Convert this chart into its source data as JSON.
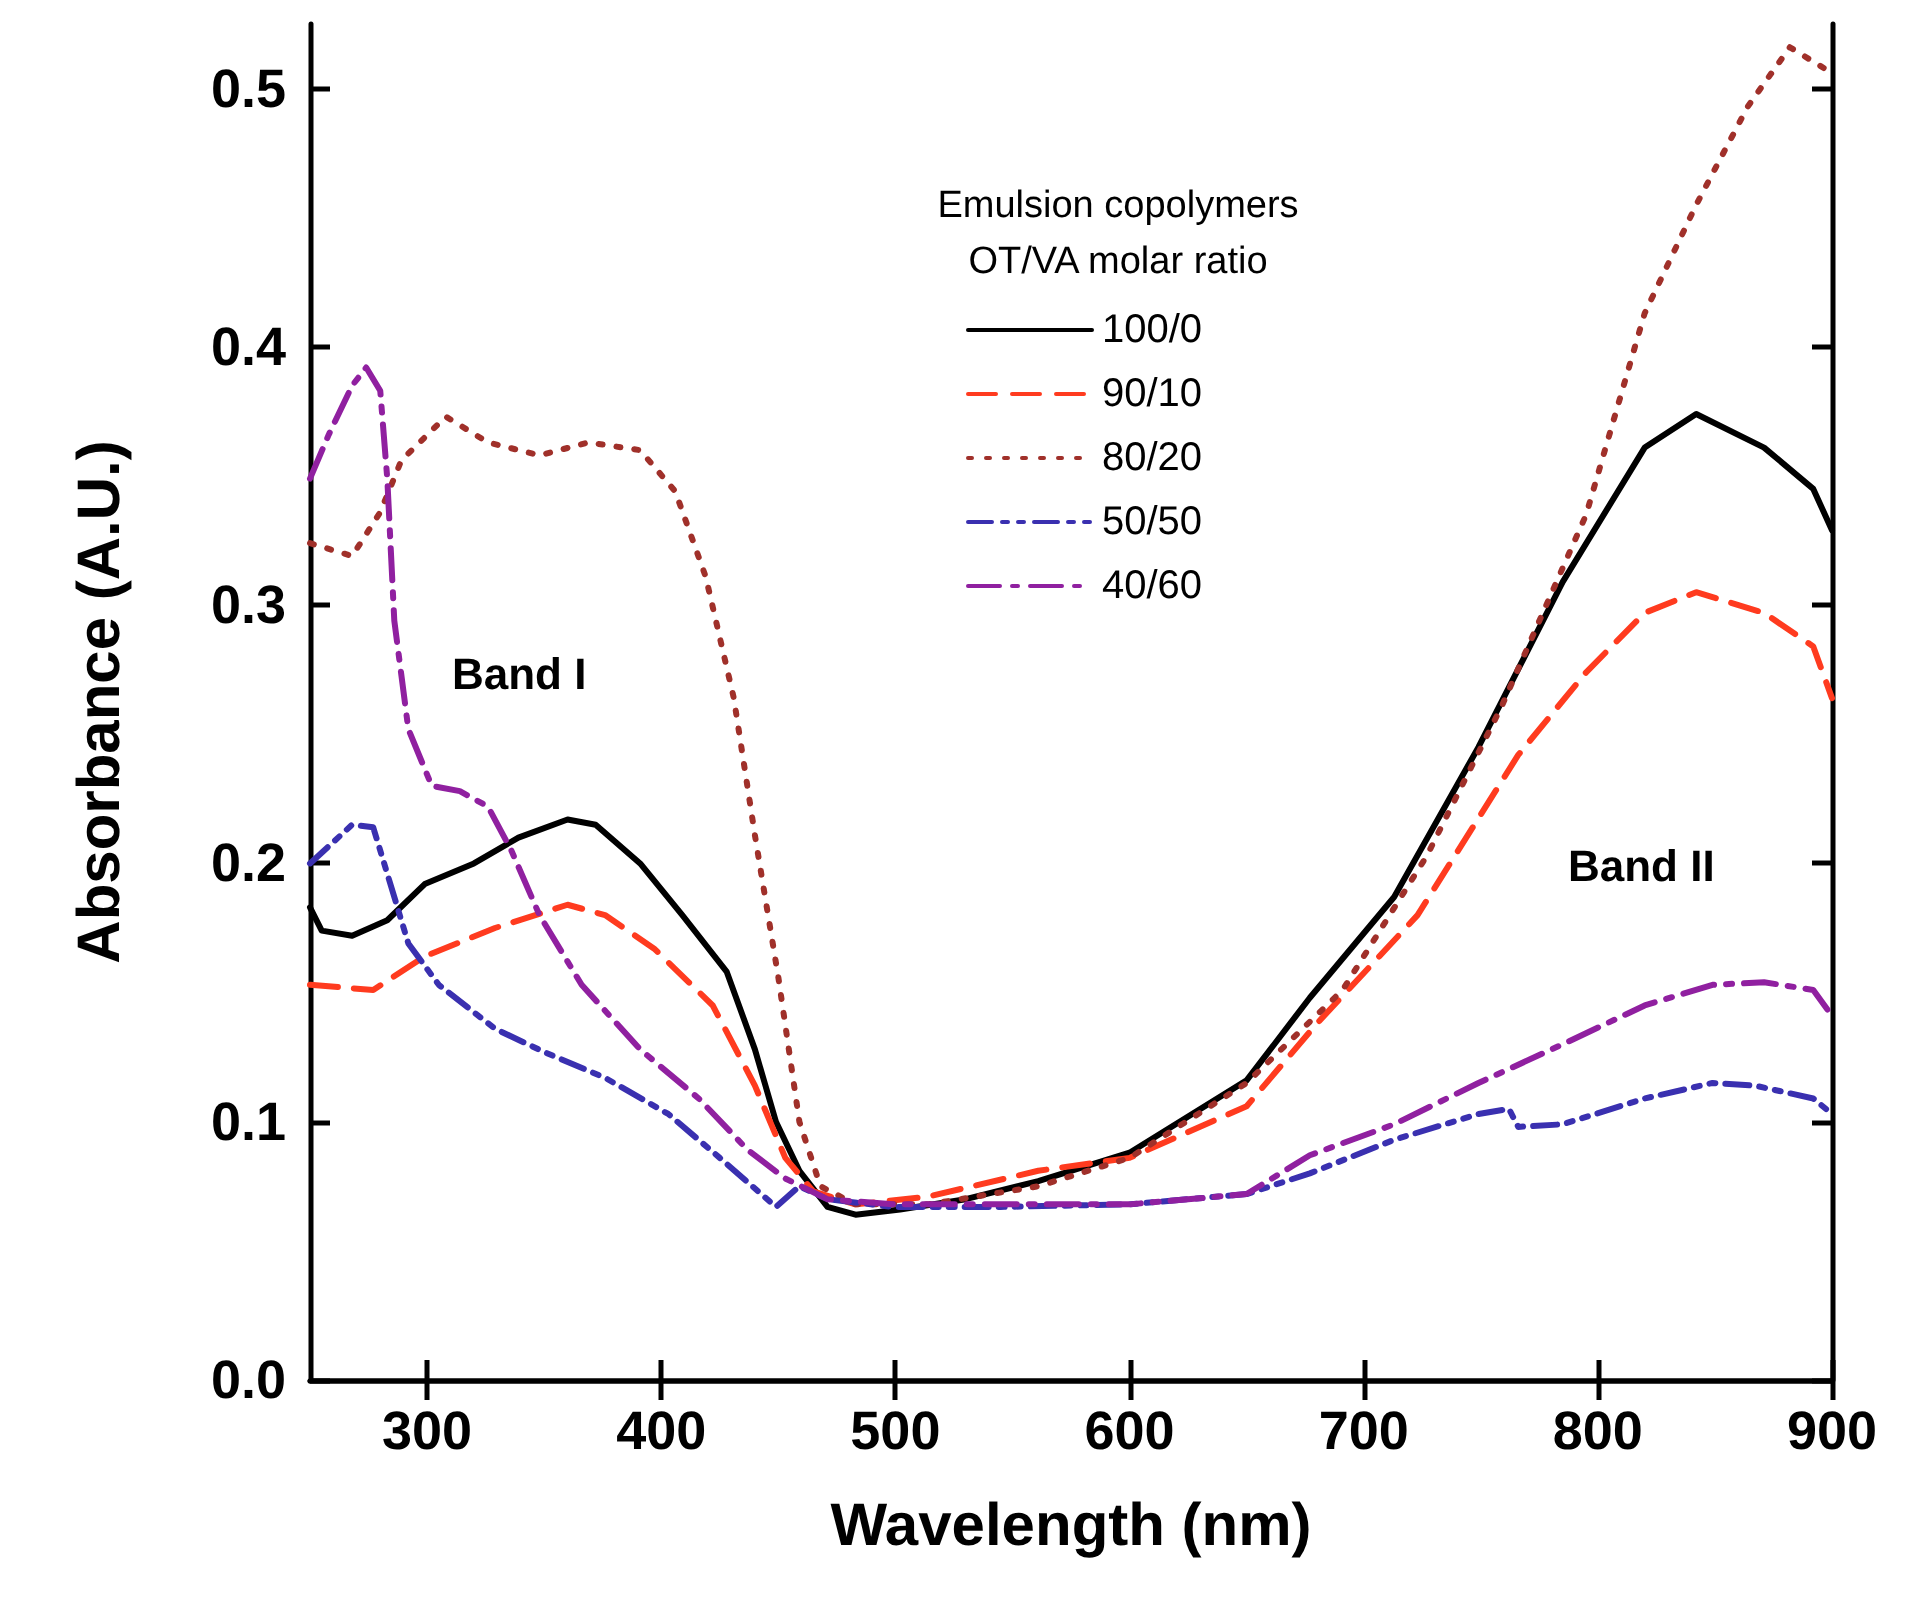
{
  "chart_data": {
    "type": "line",
    "xlabel": "Wavelength (nm)",
    "ylabel": "Absorbance (A.U.)",
    "legend_title": "Emulsion copolymers\nOT/VA molar ratio",
    "legend": "top",
    "grid": false,
    "marker": "none",
    "xlim": [
      250,
      900
    ],
    "xticks": [
      300,
      400,
      500,
      600,
      700,
      800,
      900
    ],
    "ylim": [
      0,
      0.525
    ],
    "yticks": [
      {
        "value": 0,
        "label": "0.0"
      },
      0.1,
      0.2,
      0.3,
      0.4,
      0.5
    ],
    "annotations": [
      "Band I",
      "Band II"
    ],
    "series": [
      {
        "name": "100/0",
        "color": "#000000",
        "line_style": "solid",
        "x": [
          250,
          255,
          268,
          283,
          299,
          320,
          339,
          360,
          372,
          391,
          409,
          428,
          440,
          449,
          459,
          471,
          483,
          502,
          530,
          561,
          600,
          650,
          677,
          713,
          749,
          785,
          820,
          842,
          871,
          892,
          900
        ],
        "values": [
          0.183,
          0.174,
          0.172,
          0.178,
          0.192,
          0.2,
          0.21,
          0.217,
          0.215,
          0.2,
          0.18,
          0.158,
          0.128,
          0.1,
          0.081,
          0.067,
          0.064,
          0.066,
          0.07,
          0.077,
          0.088,
          0.116,
          0.148,
          0.187,
          0.245,
          0.309,
          0.361,
          0.374,
          0.361,
          0.345,
          0.329
        ]
      },
      {
        "name": "90/10",
        "color": "#ff3b1f",
        "line_style": "dashed",
        "x": [
          250,
          277,
          299,
          329,
          360,
          376,
          397,
          422,
          440,
          453,
          465,
          483,
          514,
          561,
          600,
          650,
          680,
          723,
          766,
          795,
          820,
          842,
          871,
          892,
          900
        ],
        "values": [
          0.153,
          0.151,
          0.164,
          0.175,
          0.184,
          0.18,
          0.167,
          0.145,
          0.114,
          0.086,
          0.073,
          0.068,
          0.071,
          0.081,
          0.086,
          0.106,
          0.138,
          0.18,
          0.242,
          0.274,
          0.297,
          0.305,
          0.297,
          0.284,
          0.264
        ]
      },
      {
        "name": "80/20",
        "color": "#a0302a",
        "line_style": "dotted",
        "x": [
          250,
          268,
          280,
          289,
          308,
          326,
          348,
          369,
          391,
          406,
          419,
          431,
          440,
          450,
          459,
          468,
          483,
          514,
          561,
          600,
          650,
          691,
          727,
          759,
          795,
          820,
          842,
          864,
          882,
          900
        ],
        "values": [
          0.324,
          0.319,
          0.336,
          0.356,
          0.373,
          0.363,
          0.358,
          0.363,
          0.36,
          0.344,
          0.311,
          0.264,
          0.211,
          0.156,
          0.1,
          0.075,
          0.068,
          0.068,
          0.075,
          0.086,
          0.115,
          0.151,
          0.203,
          0.261,
          0.335,
          0.413,
          0.455,
          0.493,
          0.516,
          0.506
        ]
      },
      {
        "name": "50/50",
        "color": "#3a30b0",
        "line_style": "dashdotdot",
        "x": [
          250,
          268,
          277,
          292,
          305,
          329,
          350,
          376,
          403,
          425,
          449,
          459,
          471,
          499,
          545,
          600,
          650,
          677,
          713,
          749,
          762,
          766,
          785,
          820,
          849,
          867,
          892,
          900
        ],
        "values": [
          0.2,
          0.215,
          0.214,
          0.169,
          0.153,
          0.136,
          0.127,
          0.117,
          0.103,
          0.086,
          0.067,
          0.075,
          0.07,
          0.067,
          0.067,
          0.068,
          0.072,
          0.08,
          0.093,
          0.103,
          0.105,
          0.098,
          0.099,
          0.109,
          0.115,
          0.114,
          0.109,
          0.103
        ]
      },
      {
        "name": "40/60",
        "color": "#9020a0",
        "line_style": "dashdot",
        "x": [
          250,
          258,
          268,
          274,
          280,
          283,
          286,
          292,
          302,
          314,
          326,
          336,
          348,
          366,
          391,
          416,
          437,
          453,
          471,
          499,
          545,
          600,
          650,
          677,
          713,
          749,
          785,
          820,
          849,
          871,
          892,
          900
        ],
        "values": [
          0.349,
          0.366,
          0.385,
          0.392,
          0.383,
          0.349,
          0.294,
          0.252,
          0.23,
          0.228,
          0.222,
          0.205,
          0.18,
          0.153,
          0.128,
          0.109,
          0.089,
          0.078,
          0.07,
          0.068,
          0.068,
          0.068,
          0.072,
          0.087,
          0.099,
          0.115,
          0.13,
          0.145,
          0.153,
          0.154,
          0.151,
          0.141
        ]
      }
    ]
  }
}
